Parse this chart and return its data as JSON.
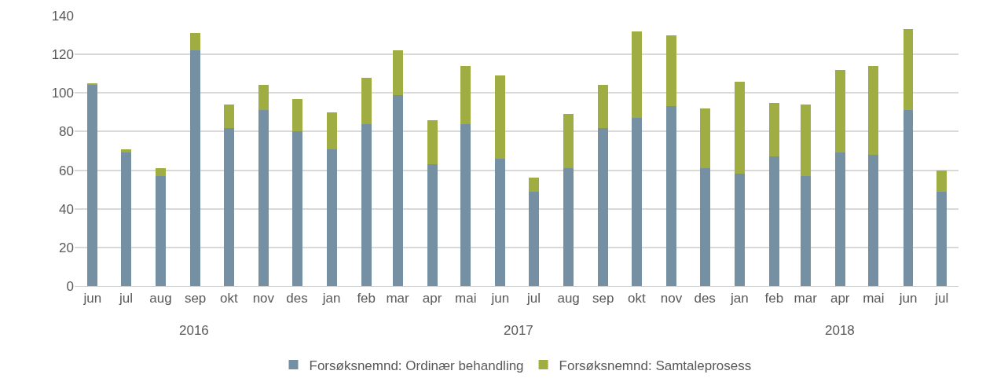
{
  "chart_data": {
    "type": "bar",
    "stacked": true,
    "x": [
      "2016-06",
      "2016-07",
      "2016-08",
      "2016-09",
      "2016-10",
      "2016-11",
      "2016-12",
      "2017-01",
      "2017-02",
      "2017-03",
      "2017-04",
      "2017-05",
      "2017-06",
      "2017-07",
      "2017-08",
      "2017-09",
      "2017-10",
      "2017-11",
      "2017-12",
      "2018-01",
      "2018-02",
      "2018-03",
      "2018-04",
      "2018-05",
      "2018-06",
      "2018-07"
    ],
    "xticks": [
      {
        "value": "2016-06",
        "label": "jun"
      },
      {
        "value": "2016-07",
        "label": "jul"
      },
      {
        "value": "2016-08",
        "label": "aug"
      },
      {
        "value": "2016-09",
        "label": "sep"
      },
      {
        "value": "2016-10",
        "label": "okt"
      },
      {
        "value": "2016-11",
        "label": "nov"
      },
      {
        "value": "2016-12",
        "label": "des"
      },
      {
        "value": "2017-01",
        "label": "jan"
      },
      {
        "value": "2017-02",
        "label": "feb"
      },
      {
        "value": "2017-03",
        "label": "mar"
      },
      {
        "value": "2017-04",
        "label": "apr"
      },
      {
        "value": "2017-05",
        "label": "mai"
      },
      {
        "value": "2017-06",
        "label": "jun"
      },
      {
        "value": "2017-07",
        "label": "jul"
      },
      {
        "value": "2017-08",
        "label": "aug"
      },
      {
        "value": "2017-09",
        "label": "sep"
      },
      {
        "value": "2017-10",
        "label": "okt"
      },
      {
        "value": "2017-11",
        "label": "nov"
      },
      {
        "value": "2017-12",
        "label": "des"
      },
      {
        "value": "2018-01",
        "label": "jan"
      },
      {
        "value": "2018-02",
        "label": "feb"
      },
      {
        "value": "2018-03",
        "label": "mar"
      },
      {
        "value": "2018-04",
        "label": "apr"
      },
      {
        "value": "2018-05",
        "label": "mai"
      },
      {
        "value": "2018-06",
        "label": "jun"
      },
      {
        "value": "2018-07",
        "label": "jul"
      }
    ],
    "series": [
      {
        "name": "Forsøksnemnd: Ordinær behandling",
        "color": "#7590a3",
        "values": [
          104,
          69,
          57,
          122,
          82,
          91,
          80,
          71,
          84,
          99,
          63,
          84,
          66,
          49,
          61,
          82,
          87,
          93,
          61,
          58,
          67,
          57,
          69,
          68,
          91,
          49
        ]
      },
      {
        "name": "Forsøksnemnd: Samtaleprosess",
        "color": "#9fad42",
        "values": [
          1,
          2,
          4,
          9,
          12,
          13,
          17,
          19,
          24,
          23,
          23,
          30,
          43,
          7,
          28,
          22,
          45,
          37,
          31,
          48,
          28,
          37,
          43,
          46,
          42,
          11
        ]
      }
    ],
    "xlim": [
      "2016-05-16",
      "2018-07-16"
    ],
    "annotations": [
      "2016",
      "2017",
      "2018"
    ],
    "ylim": [
      0,
      140
    ],
    "yticks": [
      0,
      20,
      40,
      60,
      80,
      100,
      120,
      140
    ],
    "grid": "y",
    "legend": "bottom"
  }
}
